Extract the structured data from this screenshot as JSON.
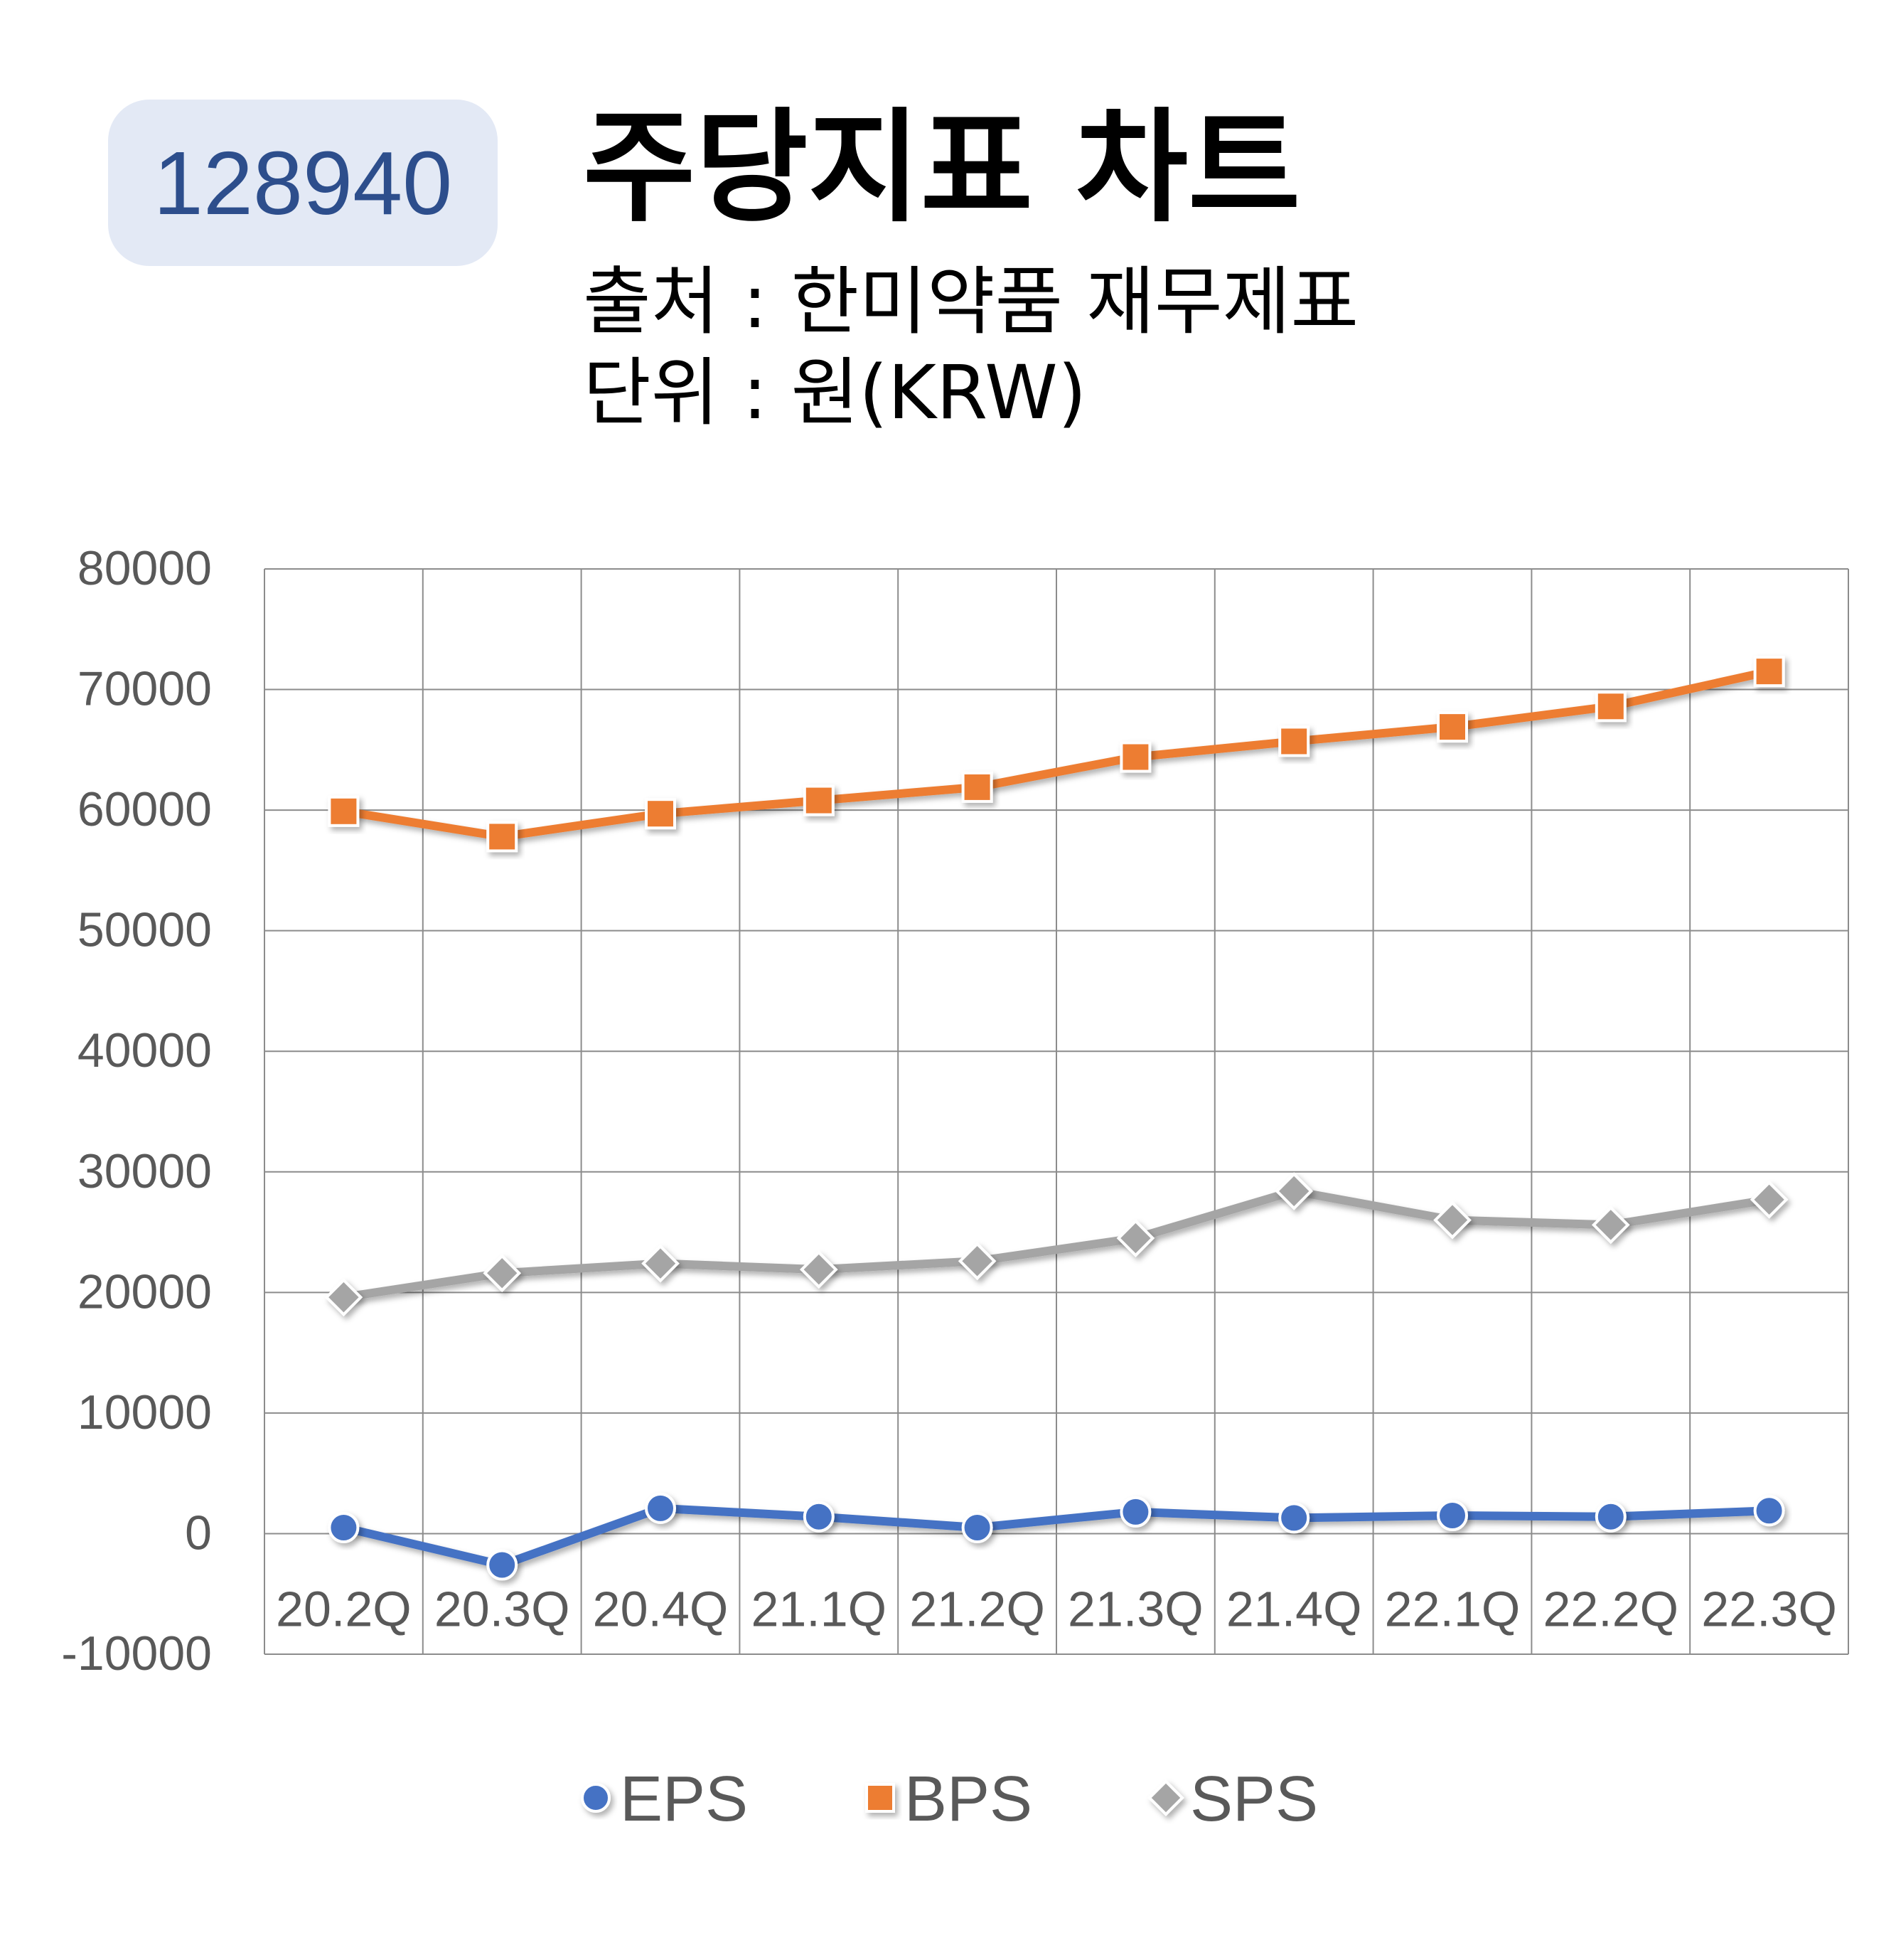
{
  "header": {
    "code": "128940",
    "title": "주당지표 차트",
    "source": "출처 : 한미약품 재무제표",
    "unit": "단위 : 원(KRW)"
  },
  "colors": {
    "EPS": "#4472c4",
    "BPS": "#ed7d31",
    "SPS": "#a5a5a5",
    "grid": "#8c8c8c",
    "tick": "#595959"
  },
  "chart_data": {
    "type": "line",
    "categories": [
      "20.2Q",
      "20.3Q",
      "20.4Q",
      "21.1Q",
      "21.2Q",
      "21.3Q",
      "21.4Q",
      "22.1Q",
      "22.2Q",
      "22.3Q"
    ],
    "series": [
      {
        "name": "EPS",
        "marker": "circle",
        "values": [
          500,
          -2600,
          2100,
          1400,
          500,
          1800,
          1300,
          1500,
          1400,
          1900
        ]
      },
      {
        "name": "BPS",
        "marker": "square",
        "values": [
          59900,
          57800,
          59700,
          60800,
          61900,
          64400,
          65700,
          66900,
          68600,
          71500
        ]
      },
      {
        "name": "SPS",
        "marker": "diamond",
        "values": [
          19600,
          21600,
          22400,
          21900,
          22600,
          24500,
          28400,
          26000,
          25600,
          27700
        ]
      }
    ],
    "yticks": [
      "80000",
      "70000",
      "60000",
      "50000",
      "40000",
      "30000",
      "20000",
      "10000",
      "0",
      "-10000"
    ],
    "ylim": [
      -10000,
      80000
    ],
    "grid": true,
    "legend": "bottom"
  }
}
